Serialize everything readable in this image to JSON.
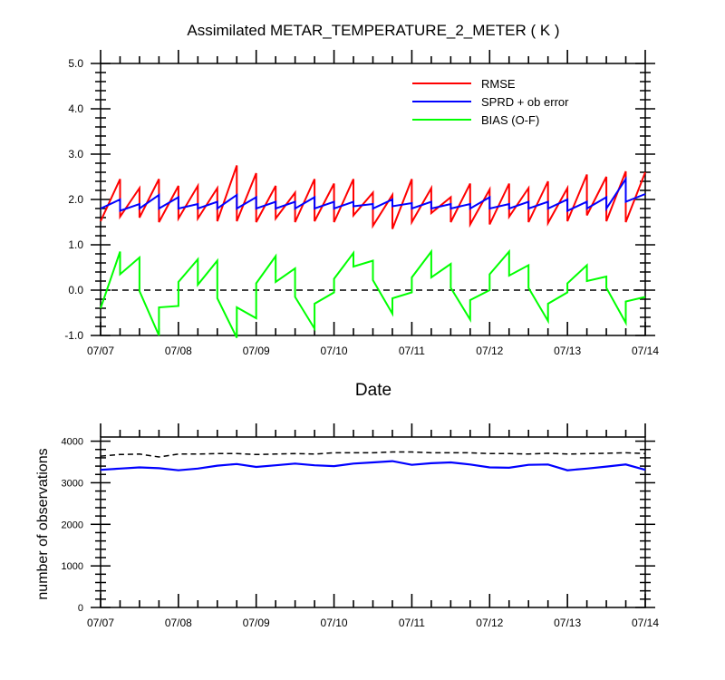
{
  "chart_data": [
    {
      "type": "line",
      "title": "Assimilated METAR_TEMPERATURE_2_METER ( K )",
      "xlabel": "Date",
      "ylabel": "",
      "ylim": [
        -1.0,
        5.0
      ],
      "yticks": [
        "-1.0",
        "0.0",
        "1.0",
        "2.0",
        "3.0",
        "4.0",
        "5.0"
      ],
      "xlim": [
        0,
        7
      ],
      "xticks": [
        "07/07",
        "07/08",
        "07/09",
        "07/10",
        "07/11",
        "07/12",
        "07/13",
        "07/14"
      ],
      "x_unit": "days since 07/07",
      "legend_position": "top-right",
      "zero_line": true,
      "series": [
        {
          "name": "RMSE",
          "color": "#ff0000",
          "points": [
            [
              0,
              1.52
            ],
            [
              0.25,
              2.45
            ],
            [
              0.25,
              1.62
            ],
            [
              0.5,
              2.25
            ],
            [
              0.5,
              1.6
            ],
            [
              0.75,
              2.45
            ],
            [
              0.75,
              1.5
            ],
            [
              1.0,
              2.3
            ],
            [
              1.0,
              1.58
            ],
            [
              1.25,
              2.3
            ],
            [
              1.25,
              1.58
            ],
            [
              1.5,
              2.25
            ],
            [
              1.5,
              1.52
            ],
            [
              1.75,
              2.75
            ],
            [
              1.75,
              1.52
            ],
            [
              2.0,
              2.58
            ],
            [
              2.0,
              1.5
            ],
            [
              2.25,
              2.3
            ],
            [
              2.25,
              1.58
            ],
            [
              2.5,
              2.15
            ],
            [
              2.5,
              1.5
            ],
            [
              2.75,
              2.45
            ],
            [
              2.75,
              1.52
            ],
            [
              3.0,
              2.35
            ],
            [
              3.0,
              1.5
            ],
            [
              3.25,
              2.45
            ],
            [
              3.25,
              1.65
            ],
            [
              3.5,
              2.15
            ],
            [
              3.5,
              1.42
            ],
            [
              3.75,
              2.1
            ],
            [
              3.75,
              1.35
            ],
            [
              4.0,
              2.45
            ],
            [
              4.0,
              1.5
            ],
            [
              4.25,
              2.25
            ],
            [
              4.25,
              1.7
            ],
            [
              4.5,
              2.05
            ],
            [
              4.5,
              1.5
            ],
            [
              4.75,
              2.35
            ],
            [
              4.75,
              1.45
            ],
            [
              5.0,
              2.22
            ],
            [
              5.0,
              1.45
            ],
            [
              5.25,
              2.35
            ],
            [
              5.25,
              1.62
            ],
            [
              5.5,
              2.25
            ],
            [
              5.5,
              1.5
            ],
            [
              5.75,
              2.4
            ],
            [
              5.75,
              1.48
            ],
            [
              6.0,
              2.25
            ],
            [
              6.0,
              1.52
            ],
            [
              6.25,
              2.55
            ],
            [
              6.25,
              1.65
            ],
            [
              6.5,
              2.5
            ],
            [
              6.5,
              1.52
            ],
            [
              6.75,
              2.62
            ],
            [
              6.75,
              1.5
            ],
            [
              7.0,
              2.6
            ]
          ]
        },
        {
          "name": "SPRD + ob error",
          "color": "#0000ff",
          "points": [
            [
              0,
              1.8
            ],
            [
              0.25,
              2.0
            ],
            [
              0.25,
              1.75
            ],
            [
              0.5,
              1.9
            ],
            [
              0.5,
              1.8
            ],
            [
              0.75,
              2.1
            ],
            [
              0.75,
              1.8
            ],
            [
              1.0,
              2.05
            ],
            [
              1.0,
              1.8
            ],
            [
              1.25,
              1.9
            ],
            [
              1.25,
              1.8
            ],
            [
              1.5,
              1.95
            ],
            [
              1.5,
              1.8
            ],
            [
              1.75,
              2.1
            ],
            [
              1.75,
              1.8
            ],
            [
              2.0,
              2.05
            ],
            [
              2.0,
              1.8
            ],
            [
              2.25,
              1.95
            ],
            [
              2.25,
              1.8
            ],
            [
              2.5,
              1.95
            ],
            [
              2.5,
              1.8
            ],
            [
              2.75,
              2.05
            ],
            [
              2.75,
              1.8
            ],
            [
              3.0,
              1.95
            ],
            [
              3.0,
              1.8
            ],
            [
              3.25,
              1.95
            ],
            [
              3.25,
              1.85
            ],
            [
              3.5,
              1.9
            ],
            [
              3.5,
              1.8
            ],
            [
              3.75,
              2.0
            ],
            [
              3.75,
              1.85
            ],
            [
              4.0,
              1.92
            ],
            [
              4.0,
              1.8
            ],
            [
              4.25,
              1.95
            ],
            [
              4.25,
              1.8
            ],
            [
              4.5,
              1.9
            ],
            [
              4.5,
              1.8
            ],
            [
              4.75,
              1.9
            ],
            [
              4.75,
              1.8
            ],
            [
              5.0,
              2.05
            ],
            [
              5.0,
              1.8
            ],
            [
              5.25,
              1.9
            ],
            [
              5.25,
              1.8
            ],
            [
              5.5,
              1.95
            ],
            [
              5.5,
              1.8
            ],
            [
              5.75,
              1.95
            ],
            [
              5.75,
              1.8
            ],
            [
              6.0,
              2.0
            ],
            [
              6.0,
              1.75
            ],
            [
              6.25,
              1.95
            ],
            [
              6.25,
              1.8
            ],
            [
              6.5,
              2.05
            ],
            [
              6.5,
              1.8
            ],
            [
              6.75,
              2.45
            ],
            [
              6.75,
              1.95
            ],
            [
              7.0,
              2.12
            ]
          ]
        },
        {
          "name": "BIAS (O-F)",
          "color": "#00ff00",
          "points": [
            [
              0,
              -0.4
            ],
            [
              0.25,
              0.85
            ],
            [
              0.25,
              0.35
            ],
            [
              0.5,
              0.72
            ],
            [
              0.5,
              -0.02
            ],
            [
              0.75,
              -1.0
            ],
            [
              0.75,
              -0.38
            ],
            [
              1.0,
              -0.35
            ],
            [
              1.0,
              0.18
            ],
            [
              1.25,
              0.68
            ],
            [
              1.25,
              0.12
            ],
            [
              1.5,
              0.65
            ],
            [
              1.5,
              -0.18
            ],
            [
              1.75,
              -1.05
            ],
            [
              1.75,
              -0.38
            ],
            [
              2.0,
              -0.62
            ],
            [
              2.0,
              0.15
            ],
            [
              2.25,
              0.75
            ],
            [
              2.25,
              0.18
            ],
            [
              2.5,
              0.48
            ],
            [
              2.5,
              -0.15
            ],
            [
              2.75,
              -0.85
            ],
            [
              2.75,
              -0.3
            ],
            [
              3.0,
              -0.05
            ],
            [
              3.0,
              0.25
            ],
            [
              3.25,
              0.82
            ],
            [
              3.25,
              0.52
            ],
            [
              3.5,
              0.65
            ],
            [
              3.5,
              0.22
            ],
            [
              3.75,
              -0.52
            ],
            [
              3.75,
              -0.18
            ],
            [
              4.0,
              -0.05
            ],
            [
              4.0,
              0.28
            ],
            [
              4.25,
              0.85
            ],
            [
              4.25,
              0.28
            ],
            [
              4.5,
              0.58
            ],
            [
              4.5,
              0.05
            ],
            [
              4.75,
              -0.65
            ],
            [
              4.75,
              -0.22
            ],
            [
              5.0,
              0.0
            ],
            [
              5.0,
              0.35
            ],
            [
              5.25,
              0.85
            ],
            [
              5.25,
              0.32
            ],
            [
              5.5,
              0.55
            ],
            [
              5.5,
              0.05
            ],
            [
              5.75,
              -0.68
            ],
            [
              5.75,
              -0.3
            ],
            [
              6.0,
              -0.05
            ],
            [
              6.0,
              0.15
            ],
            [
              6.25,
              0.55
            ],
            [
              6.25,
              0.2
            ],
            [
              6.5,
              0.3
            ],
            [
              6.5,
              0.05
            ],
            [
              6.75,
              -0.72
            ],
            [
              6.75,
              -0.25
            ],
            [
              7.0,
              -0.15
            ]
          ]
        }
      ]
    },
    {
      "type": "line",
      "title": "",
      "xlabel": "",
      "ylabel": "number of observations",
      "ylim": [
        0,
        4100
      ],
      "yticks": [
        "0",
        "1000",
        "2000",
        "3000",
        "4000"
      ],
      "xlim": [
        0,
        7
      ],
      "xticks": [
        "07/07",
        "07/08",
        "07/09",
        "07/10",
        "07/11",
        "07/12",
        "07/13",
        "07/14"
      ],
      "x_unit": "days since 07/07",
      "series": [
        {
          "name": "",
          "color": "#000000",
          "style": "dashed",
          "points": [
            [
              0,
              3640
            ],
            [
              0.25,
              3680
            ],
            [
              0.5,
              3690
            ],
            [
              0.75,
              3620
            ],
            [
              1.0,
              3690
            ],
            [
              1.25,
              3690
            ],
            [
              1.5,
              3700
            ],
            [
              1.75,
              3700
            ],
            [
              2.0,
              3680
            ],
            [
              2.25,
              3690
            ],
            [
              2.5,
              3700
            ],
            [
              2.75,
              3690
            ],
            [
              3.0,
              3720
            ],
            [
              3.25,
              3720
            ],
            [
              3.5,
              3720
            ],
            [
              3.75,
              3740
            ],
            [
              4.0,
              3740
            ],
            [
              4.25,
              3720
            ],
            [
              4.5,
              3720
            ],
            [
              4.75,
              3720
            ],
            [
              5.0,
              3700
            ],
            [
              5.25,
              3700
            ],
            [
              5.5,
              3690
            ],
            [
              5.75,
              3710
            ],
            [
              6.0,
              3690
            ],
            [
              6.25,
              3700
            ],
            [
              6.5,
              3710
            ],
            [
              6.75,
              3720
            ],
            [
              7.0,
              3700
            ]
          ]
        },
        {
          "name": "",
          "color": "#0000ff",
          "style": "solid",
          "points": [
            [
              0,
              3310
            ],
            [
              0.25,
              3340
            ],
            [
              0.5,
              3370
            ],
            [
              0.75,
              3350
            ],
            [
              1.0,
              3300
            ],
            [
              1.25,
              3340
            ],
            [
              1.5,
              3410
            ],
            [
              1.75,
              3450
            ],
            [
              2.0,
              3380
            ],
            [
              2.25,
              3420
            ],
            [
              2.5,
              3460
            ],
            [
              2.75,
              3420
            ],
            [
              3.0,
              3400
            ],
            [
              3.25,
              3460
            ],
            [
              3.5,
              3490
            ],
            [
              3.75,
              3520
            ],
            [
              4.0,
              3430
            ],
            [
              4.25,
              3470
            ],
            [
              4.5,
              3490
            ],
            [
              4.75,
              3440
            ],
            [
              5.0,
              3370
            ],
            [
              5.25,
              3360
            ],
            [
              5.5,
              3430
            ],
            [
              5.75,
              3440
            ],
            [
              6.0,
              3300
            ],
            [
              6.25,
              3340
            ],
            [
              6.5,
              3390
            ],
            [
              6.75,
              3440
            ],
            [
              7.0,
              3310
            ]
          ]
        }
      ]
    }
  ]
}
